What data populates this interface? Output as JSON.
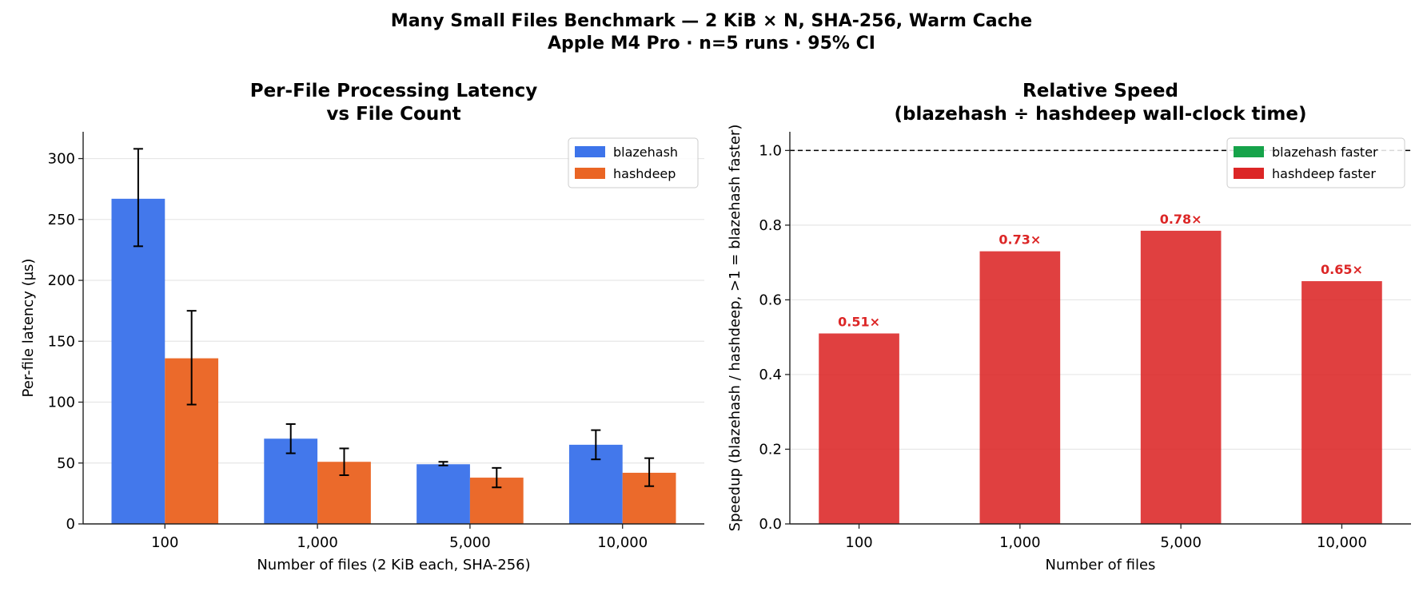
{
  "suptitle": [
    "Many Small Files Benchmark — 2 KiB × N, SHA-256, Warm Cache",
    "Apple M4 Pro · n=5 runs · 95% CI"
  ],
  "chart_data": [
    {
      "type": "bar",
      "title": [
        "Per-File Processing Latency",
        "vs File Count"
      ],
      "xlabel": "Number of files (2 KiB each, SHA-256)",
      "ylabel": "Per-file latency (µs)",
      "categories": [
        "100",
        "1,000",
        "5,000",
        "10,000"
      ],
      "ylim": [
        0,
        322
      ],
      "yticks": [
        0,
        50,
        100,
        150,
        200,
        250,
        300
      ],
      "grid": "y",
      "legend": "top-right",
      "series": [
        {
          "name": "blazehash",
          "color": "#3d74ea",
          "values": [
            267,
            70,
            49,
            65
          ],
          "ci_low": [
            228,
            58,
            48,
            53
          ],
          "ci_high": [
            308,
            82,
            51,
            77
          ]
        },
        {
          "name": "hashdeep",
          "color": "#ea6524",
          "values": [
            136,
            51,
            38,
            42
          ],
          "ci_low": [
            98,
            40,
            30,
            31
          ],
          "ci_high": [
            175,
            62,
            46,
            54
          ]
        }
      ]
    },
    {
      "type": "bar",
      "title": [
        "Relative Speed",
        "(blazehash ÷ hashdeep wall-clock time)"
      ],
      "xlabel": "Number of files",
      "ylabel": "Speedup (blazehash / hashdeep, >1 = blazehash faster)",
      "categories": [
        "100",
        "1,000",
        "5,000",
        "10,000"
      ],
      "values": [
        0.51,
        0.73,
        0.785,
        0.65
      ],
      "data_labels": [
        "0.51×",
        "0.73×",
        "0.78×",
        "0.65×"
      ],
      "ylim": [
        0,
        1.05
      ],
      "yticks": [
        "0.0",
        "0.2",
        "0.4",
        "0.6",
        "0.8",
        "1.0"
      ],
      "reference_line": 1.0,
      "grid": "y",
      "legend": "top-right",
      "legend_entries": [
        {
          "name": "blazehash faster",
          "color": "#16a34a"
        },
        {
          "name": "hashdeep faster",
          "color": "#dc2626"
        }
      ],
      "bar_color": "#dc2626",
      "label_color": "#dc2626"
    }
  ]
}
